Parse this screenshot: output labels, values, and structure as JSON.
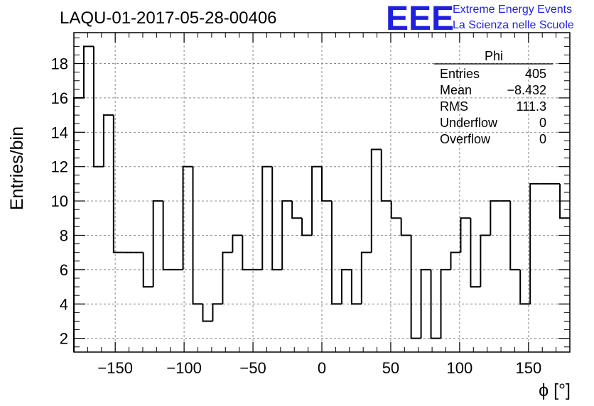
{
  "chart_data": {
    "type": "bar",
    "title": "LAQU-01-2017-05-28-00406",
    "xlabel": "ϕ [°]",
    "ylabel": "Entries/bin",
    "xlim": [
      -180,
      180
    ],
    "ylim": [
      1.2,
      19.8
    ],
    "bin_width": 7.2,
    "x_ticks": [
      -150,
      -100,
      -50,
      0,
      50,
      100,
      150
    ],
    "x_tick_labels": [
      "−150",
      "−100",
      "−50",
      "0",
      "50",
      "100",
      "150"
    ],
    "y_ticks": [
      2,
      4,
      6,
      8,
      10,
      12,
      14,
      16,
      18
    ],
    "y_tick_labels": [
      "2",
      "4",
      "6",
      "8",
      "10",
      "12",
      "14",
      "16",
      "18"
    ],
    "grid": true,
    "series": [
      {
        "values": [
          16,
          19,
          12,
          15,
          7,
          7,
          7,
          5,
          10,
          6,
          6,
          12,
          4,
          3,
          4,
          7,
          8,
          6,
          6,
          12,
          6,
          10,
          9,
          8,
          12,
          10,
          4,
          6,
          4,
          7,
          13,
          10,
          9,
          8,
          2,
          6,
          2,
          6,
          7,
          9,
          5,
          8,
          10,
          10,
          6,
          4,
          11,
          11,
          11,
          9
        ]
      }
    ],
    "stats_box": {
      "title": "Phi",
      "placement": "top-right",
      "rows": [
        {
          "label": "Entries",
          "value": "405"
        },
        {
          "label": "Mean",
          "value": "−8.432"
        },
        {
          "label": "RMS",
          "value": "111.3"
        },
        {
          "label": "Underflow",
          "value": "0"
        },
        {
          "label": "Overflow",
          "value": "0"
        }
      ]
    }
  },
  "logo": {
    "mark": "EEE",
    "line1": "Extreme Energy Events",
    "line2": "La Scienza nelle Scuole",
    "color": "#1f1fe0"
  }
}
